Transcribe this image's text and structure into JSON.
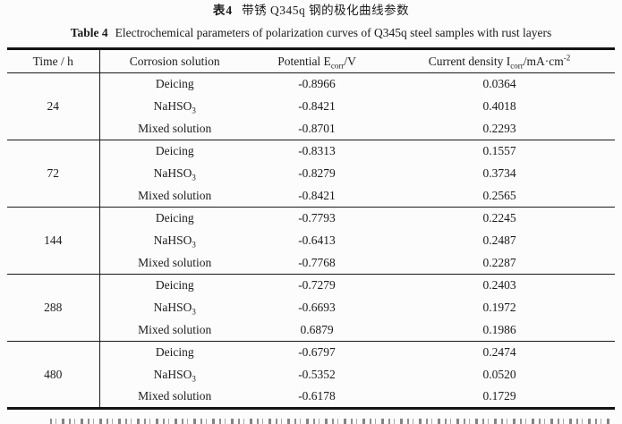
{
  "titles": {
    "zh_label": "表4",
    "zh_text": "带锈 Q345q 钢的极化曲线参数",
    "en_label": "Table 4",
    "en_text": "Electrochemical parameters of polarization curves of Q345q steel samples with rust layers"
  },
  "table": {
    "headers": {
      "time": "Time / h",
      "solution": "Corrosion solution",
      "potential_pre": "Potential E",
      "potential_sub": "corr",
      "potential_post": "/V",
      "current_pre": "Current density I",
      "current_sub": "corr",
      "current_mid": "/mA·cm",
      "current_sup": "-2"
    },
    "groups": [
      {
        "time": "24",
        "rows": [
          {
            "solution": "Deicing",
            "solution_sub": "",
            "potential": "-0.8966",
            "current": "0.0364"
          },
          {
            "solution": "NaHSO",
            "solution_sub": "3",
            "potential": "-0.8421",
            "current": "0.4018"
          },
          {
            "solution": "Mixed solution",
            "solution_sub": "",
            "potential": "-0.8701",
            "current": "0.2293"
          }
        ]
      },
      {
        "time": "72",
        "rows": [
          {
            "solution": "Deicing",
            "solution_sub": "",
            "potential": "-0.8313",
            "current": "0.1557"
          },
          {
            "solution": "NaHSO",
            "solution_sub": "3",
            "potential": "-0.8279",
            "current": "0.3734"
          },
          {
            "solution": "Mixed solution",
            "solution_sub": "",
            "potential": "-0.8421",
            "current": "0.2565"
          }
        ]
      },
      {
        "time": "144",
        "rows": [
          {
            "solution": "Deicing",
            "solution_sub": "",
            "potential": "-0.7793",
            "current": "0.2245"
          },
          {
            "solution": "NaHSO",
            "solution_sub": "3",
            "potential": "-0.6413",
            "current": "0.2487"
          },
          {
            "solution": "Mixed solution",
            "solution_sub": "",
            "potential": "-0.7768",
            "current": "0.2287"
          }
        ]
      },
      {
        "time": "288",
        "rows": [
          {
            "solution": "Deicing",
            "solution_sub": "",
            "potential": "-0.7279",
            "current": "0.2403"
          },
          {
            "solution": "NaHSO",
            "solution_sub": "3",
            "potential": "-0.6693",
            "current": "0.1972"
          },
          {
            "solution": "Mixed solution",
            "solution_sub": "",
            "potential": "0.6879",
            "current": "0.1986"
          }
        ]
      },
      {
        "time": "480",
        "rows": [
          {
            "solution": "Deicing",
            "solution_sub": "",
            "potential": "-0.6797",
            "current": "0.2474"
          },
          {
            "solution": "NaHSO",
            "solution_sub": "3",
            "potential": "-0.5352",
            "current": "0.0520"
          },
          {
            "solution": "Mixed solution",
            "solution_sub": "",
            "potential": "-0.6178",
            "current": "0.1729"
          }
        ]
      }
    ]
  }
}
